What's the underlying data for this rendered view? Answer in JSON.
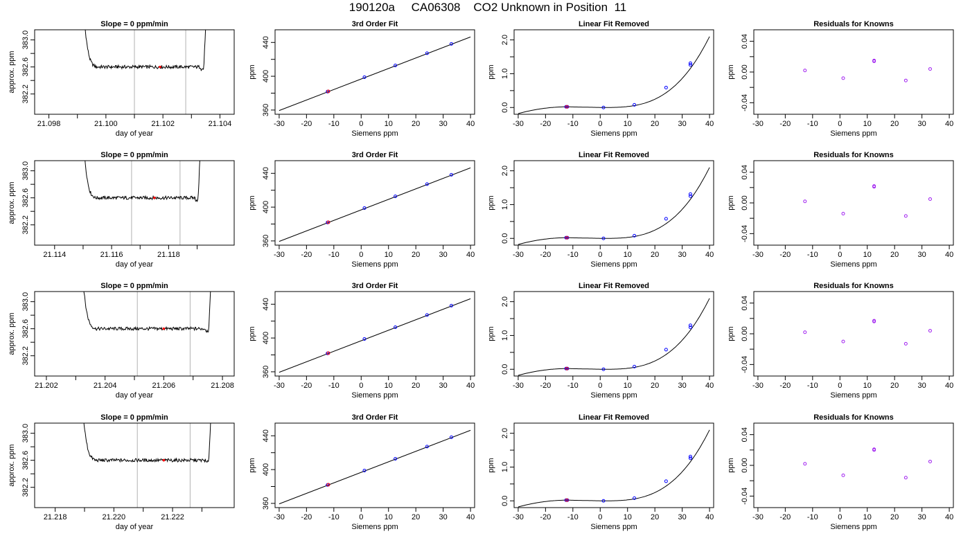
{
  "page": {
    "title": "190120a     CA06308    CO2 Unknown in Position  11"
  },
  "colors": {
    "trace": "#000000",
    "window_lines": "#bebebe",
    "knowns": "#0000ff",
    "unknown": "#ff0000",
    "residuals": "#a020f0"
  },
  "chart_data": [
    {
      "row": 1,
      "type": "line",
      "title": "Slope =  0  ppm/min",
      "xlabel": "day of year",
      "ylabel": "approx. ppm",
      "xlim": [
        21.0975,
        21.1045
      ],
      "ylim": [
        381.9,
        383.15
      ],
      "xticks": [
        "21.098",
        "21.100",
        "21.102",
        "21.104"
      ],
      "yticks": [
        "382.2",
        "382.6",
        "383.0"
      ],
      "minor_xticks": [
        21.099,
        21.101,
        21.103
      ],
      "window": [
        21.101,
        21.1028
      ],
      "unknown_point": [
        21.1019,
        382.6
      ],
      "trace_start": 21.0991,
      "trace_end": 21.1035,
      "level": 382.6,
      "grid": false
    },
    {
      "row": 1,
      "type": "scatter",
      "title": "3rd Order Fit",
      "xlabel": "Siemens ppm",
      "ylabel": "ppm",
      "xlim": [
        -31.5,
        41.5
      ],
      "ylim": [
        355,
        455
      ],
      "xticks": [
        "-30",
        "-20",
        "-10",
        "0",
        "10",
        "20",
        "30",
        "40"
      ],
      "yticks": [
        "360",
        "400",
        "440"
      ],
      "knowns": [
        [
          -12.3,
          381.8
        ],
        [
          1.2,
          398.9
        ],
        [
          12.5,
          412.8
        ],
        [
          24.1,
          427.2
        ],
        [
          33.0,
          438.3
        ]
      ],
      "unknown": [
        [
          -12.0,
          382.1
        ]
      ],
      "fit_line": [
        [
          -30,
          359.4
        ],
        [
          40,
          446.5
        ]
      ]
    },
    {
      "row": 1,
      "type": "scatter",
      "title": "Linear Fit Removed",
      "xlabel": "Siemens ppm",
      "ylabel": "ppm",
      "xlim": [
        -31.5,
        41.5
      ],
      "ylim": [
        -0.2,
        2.3
      ],
      "xticks": [
        "-30",
        "-20",
        "-10",
        "0",
        "10",
        "20",
        "30",
        "40"
      ],
      "yticks": [
        "0.0",
        "1.0",
        "2.0"
      ],
      "knowns": [
        [
          -12.5,
          0.02
        ],
        [
          -12.0,
          0.02
        ],
        [
          1.2,
          0.0
        ],
        [
          12.5,
          0.08
        ],
        [
          24.1,
          0.59
        ],
        [
          33.0,
          1.26
        ],
        [
          33.0,
          1.31
        ]
      ],
      "unknown": [
        [
          -12.2,
          0.02
        ]
      ],
      "curve_scale": 2.15
    },
    {
      "row": 1,
      "type": "scatter",
      "title": "Residuals for Knowns",
      "xlabel": "Siemens ppm",
      "ylabel": "ppm",
      "xlim": [
        -31.5,
        41.5
      ],
      "ylim": [
        -0.055,
        0.055
      ],
      "xticks": [
        "-30",
        "-20",
        "-10",
        "0",
        "10",
        "20",
        "30",
        "40"
      ],
      "yticks": [
        "-0.04",
        "0.00",
        "0.04"
      ],
      "points": [
        [
          -12.8,
          0.002
        ],
        [
          1.2,
          -0.008
        ],
        [
          12.5,
          0.014
        ],
        [
          24.1,
          -0.011
        ],
        [
          33.0,
          0.004
        ],
        [
          12.5,
          0.015
        ]
      ]
    },
    {
      "row": 2,
      "type": "line",
      "title": "Slope =  0  ppm/min",
      "xlabel": "day of year",
      "ylabel": "approx. ppm",
      "xlim": [
        21.1133,
        21.1203
      ],
      "ylim": [
        381.9,
        383.15
      ],
      "xticks": [
        "21.114",
        "21.116",
        "21.118"
      ],
      "yticks": [
        "382.2",
        "382.6",
        "383.0"
      ],
      "minor_xticks": [
        21.115,
        21.117,
        21.119
      ],
      "window": [
        21.1167,
        21.1184
      ],
      "unknown_point": [
        21.1175,
        382.6
      ],
      "trace_start": 21.1149,
      "trace_end": 21.1191,
      "level": 382.6,
      "grid": false
    },
    {
      "row": 2,
      "type": "scatter",
      "title": "3rd Order Fit",
      "xlabel": "Siemens ppm",
      "ylabel": "ppm",
      "xlim": [
        -31.5,
        41.5
      ],
      "ylim": [
        355,
        455
      ],
      "xticks": [
        "-30",
        "-20",
        "-10",
        "0",
        "10",
        "20",
        "30",
        "40"
      ],
      "yticks": [
        "360",
        "400",
        "440"
      ],
      "knowns": [
        [
          -12.3,
          381.8
        ],
        [
          1.2,
          398.9
        ],
        [
          12.5,
          412.8
        ],
        [
          24.1,
          427.2
        ],
        [
          33.0,
          438.3
        ]
      ],
      "unknown": [
        [
          -12.0,
          382.1
        ]
      ],
      "fit_line": [
        [
          -30,
          359.4
        ],
        [
          40,
          446.5
        ]
      ]
    },
    {
      "row": 2,
      "type": "scatter",
      "title": "Linear Fit Removed",
      "xlabel": "Siemens ppm",
      "ylabel": "ppm",
      "xlim": [
        -31.5,
        41.5
      ],
      "ylim": [
        -0.2,
        2.3
      ],
      "xticks": [
        "-30",
        "-20",
        "-10",
        "0",
        "10",
        "20",
        "30",
        "40"
      ],
      "yticks": [
        "0.0",
        "1.0",
        "2.0"
      ],
      "knowns": [
        [
          -12.5,
          0.02
        ],
        [
          -12.0,
          0.02
        ],
        [
          1.2,
          0.0
        ],
        [
          12.5,
          0.08
        ],
        [
          24.1,
          0.58
        ],
        [
          33.0,
          1.25
        ],
        [
          33.0,
          1.31
        ]
      ],
      "unknown": [
        [
          -12.2,
          0.02
        ]
      ],
      "curve_scale": 2.15
    },
    {
      "row": 2,
      "type": "scatter",
      "title": "Residuals for Knowns",
      "xlabel": "Siemens ppm",
      "ylabel": "ppm",
      "xlim": [
        -31.5,
        41.5
      ],
      "ylim": [
        -0.055,
        0.055
      ],
      "xticks": [
        "-30",
        "-20",
        "-10",
        "0",
        "10",
        "20",
        "30",
        "40"
      ],
      "yticks": [
        "-0.04",
        "0.00",
        "0.04"
      ],
      "points": [
        [
          -12.8,
          0.002
        ],
        [
          1.2,
          -0.014
        ],
        [
          12.5,
          0.021
        ],
        [
          24.1,
          -0.017
        ],
        [
          33.0,
          0.005
        ],
        [
          12.5,
          0.022
        ]
      ]
    },
    {
      "row": 3,
      "type": "line",
      "title": "Slope =  0  ppm/min",
      "xlabel": "day of year",
      "ylabel": "approx. ppm",
      "xlim": [
        21.2016,
        21.2084
      ],
      "ylim": [
        381.9,
        383.15
      ],
      "xticks": [
        "21.202",
        "21.204",
        "21.206",
        "21.208"
      ],
      "yticks": [
        "382.2",
        "382.6",
        "383.0"
      ],
      "minor_xticks": [
        21.203,
        21.205,
        21.207
      ],
      "window": [
        21.2051,
        21.2069
      ],
      "unknown_point": [
        21.206,
        382.6
      ],
      "trace_start": 21.2031,
      "trace_end": 21.2076,
      "level": 382.6,
      "grid": false
    },
    {
      "row": 3,
      "type": "scatter",
      "title": "3rd Order Fit",
      "xlabel": "Siemens ppm",
      "ylabel": "ppm",
      "xlim": [
        -31.5,
        41.5
      ],
      "ylim": [
        355,
        455
      ],
      "xticks": [
        "-30",
        "-20",
        "-10",
        "0",
        "10",
        "20",
        "30",
        "40"
      ],
      "yticks": [
        "360",
        "400",
        "440"
      ],
      "knowns": [
        [
          -12.3,
          381.8
        ],
        [
          1.2,
          398.9
        ],
        [
          12.5,
          412.8
        ],
        [
          24.1,
          427.2
        ],
        [
          33.0,
          438.3
        ]
      ],
      "unknown": [
        [
          -12.0,
          382.1
        ]
      ],
      "fit_line": [
        [
          -30,
          359.4
        ],
        [
          40,
          446.5
        ]
      ]
    },
    {
      "row": 3,
      "type": "scatter",
      "title": "Linear Fit Removed",
      "xlabel": "Siemens ppm",
      "ylabel": "ppm",
      "xlim": [
        -31.5,
        41.5
      ],
      "ylim": [
        -0.2,
        2.3
      ],
      "xticks": [
        "-30",
        "-20",
        "-10",
        "0",
        "10",
        "20",
        "30",
        "40"
      ],
      "yticks": [
        "0.0",
        "1.0",
        "2.0"
      ],
      "knowns": [
        [
          -12.5,
          0.02
        ],
        [
          -12.0,
          0.02
        ],
        [
          1.2,
          0.0
        ],
        [
          12.5,
          0.08
        ],
        [
          24.1,
          0.58
        ],
        [
          33.0,
          1.24
        ],
        [
          33.0,
          1.3
        ]
      ],
      "unknown": [
        [
          -12.2,
          0.02
        ]
      ],
      "curve_scale": 2.15
    },
    {
      "row": 3,
      "type": "scatter",
      "title": "Residuals for Knowns",
      "xlabel": "Siemens ppm",
      "ylabel": "ppm",
      "xlim": [
        -31.5,
        41.5
      ],
      "ylim": [
        -0.055,
        0.055
      ],
      "xticks": [
        "-30",
        "-20",
        "-10",
        "0",
        "10",
        "20",
        "30",
        "40"
      ],
      "yticks": [
        "-0.04",
        "0.00",
        "0.04"
      ],
      "points": [
        [
          -12.8,
          0.002
        ],
        [
          1.2,
          -0.01
        ],
        [
          12.5,
          0.016
        ],
        [
          24.1,
          -0.013
        ],
        [
          33.0,
          0.004
        ],
        [
          12.5,
          0.017
        ]
      ]
    },
    {
      "row": 4,
      "type": "line",
      "title": "Slope =  0  ppm/min",
      "xlabel": "day of year",
      "ylabel": "approx. ppm",
      "xlim": [
        21.2173,
        21.2241
      ],
      "ylim": [
        381.9,
        383.15
      ],
      "xticks": [
        "21.218",
        "21.220",
        "21.222"
      ],
      "yticks": [
        "382.2",
        "382.6",
        "383.0"
      ],
      "minor_xticks": [
        21.219,
        21.221,
        21.223
      ],
      "window": [
        21.2208,
        21.2226
      ],
      "unknown_point": [
        21.2217,
        382.6
      ],
      "trace_start": 21.2188,
      "trace_end": 21.2233,
      "level": 382.6,
      "grid": false
    },
    {
      "row": 4,
      "type": "scatter",
      "title": "3rd Order Fit",
      "xlabel": "Siemens ppm",
      "ylabel": "ppm",
      "xlim": [
        -31.5,
        41.5
      ],
      "ylim": [
        355,
        455
      ],
      "xticks": [
        "-30",
        "-20",
        "-10",
        "0",
        "10",
        "20",
        "30",
        "40"
      ],
      "yticks": [
        "360",
        "400",
        "440"
      ],
      "knowns": [
        [
          -12.3,
          381.8
        ],
        [
          1.2,
          398.9
        ],
        [
          12.5,
          412.8
        ],
        [
          24.1,
          427.2
        ],
        [
          33.0,
          438.3
        ]
      ],
      "unknown": [
        [
          -12.0,
          382.1
        ]
      ],
      "fit_line": [
        [
          -30,
          359.4
        ],
        [
          40,
          446.5
        ]
      ]
    },
    {
      "row": 4,
      "type": "scatter",
      "title": "Linear Fit Removed",
      "xlabel": "Siemens ppm",
      "ylabel": "ppm",
      "xlim": [
        -31.5,
        41.5
      ],
      "ylim": [
        -0.2,
        2.3
      ],
      "xticks": [
        "-30",
        "-20",
        "-10",
        "0",
        "10",
        "20",
        "30",
        "40"
      ],
      "yticks": [
        "0.0",
        "1.0",
        "2.0"
      ],
      "knowns": [
        [
          -12.5,
          0.02
        ],
        [
          -12.0,
          0.02
        ],
        [
          1.2,
          0.0
        ],
        [
          12.5,
          0.08
        ],
        [
          24.1,
          0.58
        ],
        [
          33.0,
          1.26
        ],
        [
          33.0,
          1.31
        ]
      ],
      "unknown": [
        [
          -12.2,
          0.02
        ]
      ],
      "curve_scale": 2.15
    },
    {
      "row": 4,
      "type": "scatter",
      "title": "Residuals for Knowns",
      "xlabel": "Siemens ppm",
      "ylabel": "ppm",
      "xlim": [
        -31.5,
        41.5
      ],
      "ylim": [
        -0.055,
        0.055
      ],
      "xticks": [
        "-30",
        "-20",
        "-10",
        "0",
        "10",
        "20",
        "30",
        "40"
      ],
      "yticks": [
        "-0.04",
        "0.00",
        "0.04"
      ],
      "points": [
        [
          -12.8,
          0.002
        ],
        [
          1.2,
          -0.013
        ],
        [
          12.5,
          0.02
        ],
        [
          24.1,
          -0.016
        ],
        [
          33.0,
          0.005
        ],
        [
          12.5,
          0.021
        ]
      ]
    }
  ]
}
